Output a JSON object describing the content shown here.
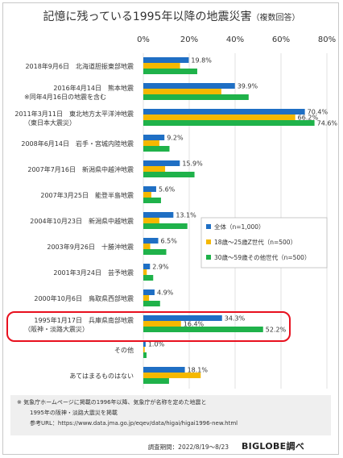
{
  "title_main": "記憶に残っている1995年以降の地震災害",
  "title_sub": "（複数回答）",
  "colors": {
    "all": "#1f6fc4",
    "young": "#f5b800",
    "senior": "#1fb24a",
    "highlight": "#e8101e",
    "grid": "#d9d9d9",
    "text": "#333333"
  },
  "chart_data": {
    "type": "bar",
    "orientation": "horizontal",
    "xlim": [
      0,
      80
    ],
    "xticks": [
      "0%",
      "20%",
      "40%",
      "60%",
      "80%"
    ],
    "xtick_values": [
      0,
      20,
      40,
      60,
      80
    ],
    "grid": true,
    "legend_position": "right-middle",
    "categories": [
      [
        "2018年9月6日　北海道胆振東部地震"
      ],
      [
        "2016年4月14日　熊本地震",
        "※同年4月16日の地震を含む"
      ],
      [
        "2011年3月11日　東北地方太平洋沖地震",
        "（東日本大震災）"
      ],
      [
        "2008年6月14日　岩手・宮城内陸地震"
      ],
      [
        "2007年7月16日　新潟県中越沖地震"
      ],
      [
        "2007年3月25日　能登半島地震"
      ],
      [
        "2004年10月23日　新潟県中越地震"
      ],
      [
        "2003年9月26日　十勝沖地震"
      ],
      [
        "2001年3月24日　芸予地震"
      ],
      [
        "2000年10月6日　鳥取県西部地震"
      ],
      [
        "1995年1月17日　兵庫県南部地震",
        "（阪神・淡路大震災）"
      ],
      [
        "その他"
      ],
      [
        "あてはまるものはない"
      ]
    ],
    "series": [
      {
        "name": "全体（n=1,000）",
        "color_key": "all",
        "values": [
          19.8,
          39.9,
          70.4,
          9.2,
          15.9,
          5.6,
          13.1,
          6.5,
          2.9,
          4.9,
          34.3,
          1.0,
          18.1
        ],
        "labels": [
          "19.8%",
          "39.9%",
          "70.4%",
          "9.2%",
          "15.9%",
          "5.6%",
          "13.1%",
          "6.5%",
          "2.9%",
          "4.9%",
          "34.3%",
          "1.0%",
          "18.1%"
        ]
      },
      {
        "name": "18歳～25歳Z世代（n=500）",
        "color_key": "young",
        "values": [
          16.0,
          34.0,
          66.2,
          7.0,
          9.5,
          3.5,
          7.0,
          3.0,
          1.5,
          2.5,
          16.4,
          0.6,
          25.0
        ],
        "labels": [
          "",
          "",
          "66.2%",
          "",
          "",
          "",
          "",
          "",
          "",
          "",
          "16.4%",
          "",
          ""
        ]
      },
      {
        "name": "30歳～59歳その他世代（n=500）",
        "color_key": "senior",
        "values": [
          23.5,
          45.9,
          74.6,
          11.4,
          22.3,
          7.7,
          19.2,
          10.0,
          4.3,
          7.3,
          52.2,
          1.4,
          11.2
        ],
        "labels": [
          "",
          "",
          "74.6%",
          "",
          "",
          "",
          "",
          "",
          "",
          "",
          "52.2%",
          "",
          ""
        ]
      }
    ],
    "highlight_index": 10
  },
  "footnote": {
    "line1": "※ 気象庁ホームページに掲載の1996年以降、気象庁が名称を定めた地震と",
    "line2": "1995年の阪神・淡路大震災を掲載",
    "line3": "参考URL：https://www.data.jma.go.jp/eqev/data/higai/higai1996-new.html"
  },
  "survey_period": "調査期間：2022/8/19～8/23",
  "brand": "BIGLOBE調べ"
}
